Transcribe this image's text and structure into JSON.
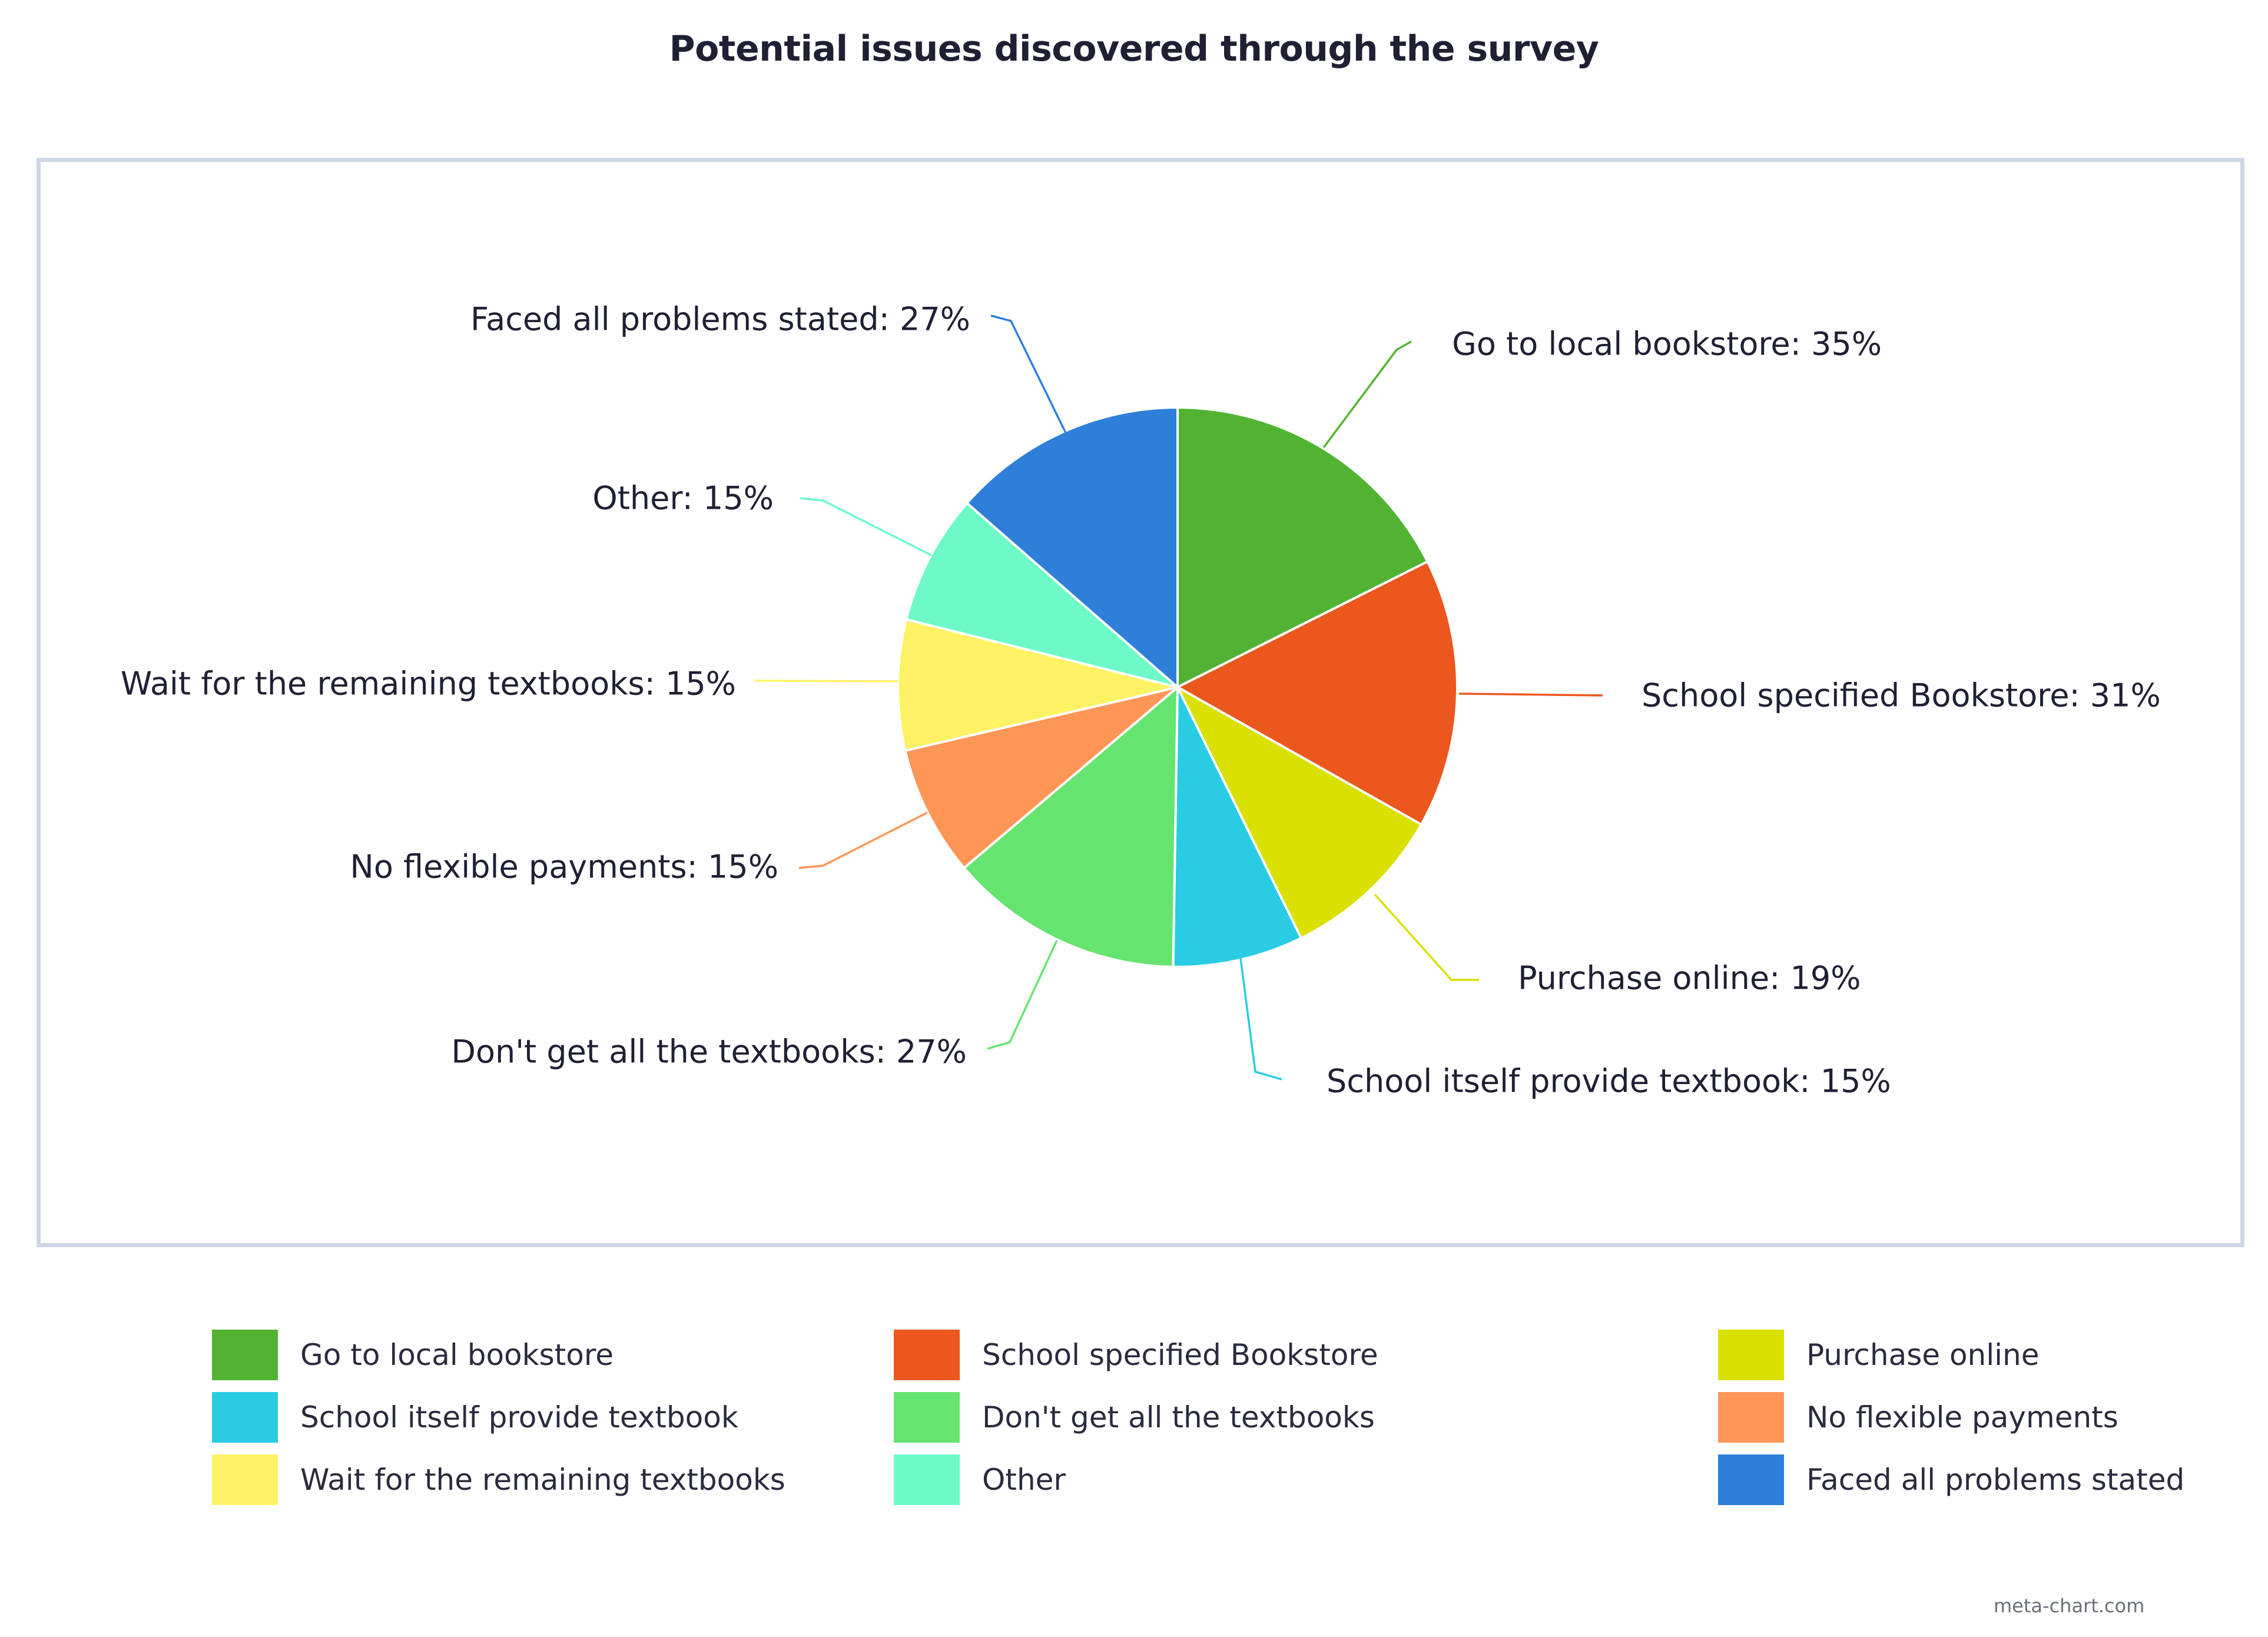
{
  "credit": "meta-chart.com",
  "chart_data": {
    "type": "pie",
    "title": "Potential issues discovered through the survey",
    "legend_position": "bottom",
    "slices": [
      {
        "name": "Go to local bookstore",
        "label": "Go to local bookstore: 35%",
        "value": 35,
        "color": "#52b333"
      },
      {
        "name": "School specified Bookstore",
        "label": "School specified Bookstore: 31%",
        "value": 31,
        "color": "#ec571e"
      },
      {
        "name": "Purchase online",
        "label": "Purchase online: 19%",
        "value": 19,
        "color": "#d9e002"
      },
      {
        "name": "School itself provide textbook",
        "label": "School itself provide textbook: 15%",
        "value": 15,
        "color": "#29cce3"
      },
      {
        "name": "Don't get all the textbooks",
        "label": "Don't get all the textbooks: 27%",
        "value": 27,
        "color": "#66e470"
      },
      {
        "name": "No flexible payments",
        "label": "No flexible payments: 15%",
        "value": 15,
        "color": "#fe9658"
      },
      {
        "name": "Wait for the remaining textbooks",
        "label": "Wait for the remaining textbooks: 15%",
        "value": 15,
        "color": "#fff265"
      },
      {
        "name": "Other",
        "label": "Other: 15%",
        "value": 15,
        "color": "#6efac8"
      },
      {
        "name": "Faced all problems stated",
        "label": "Faced all problems stated: 27%",
        "value": 27,
        "color": "#2e7fd9"
      }
    ]
  }
}
